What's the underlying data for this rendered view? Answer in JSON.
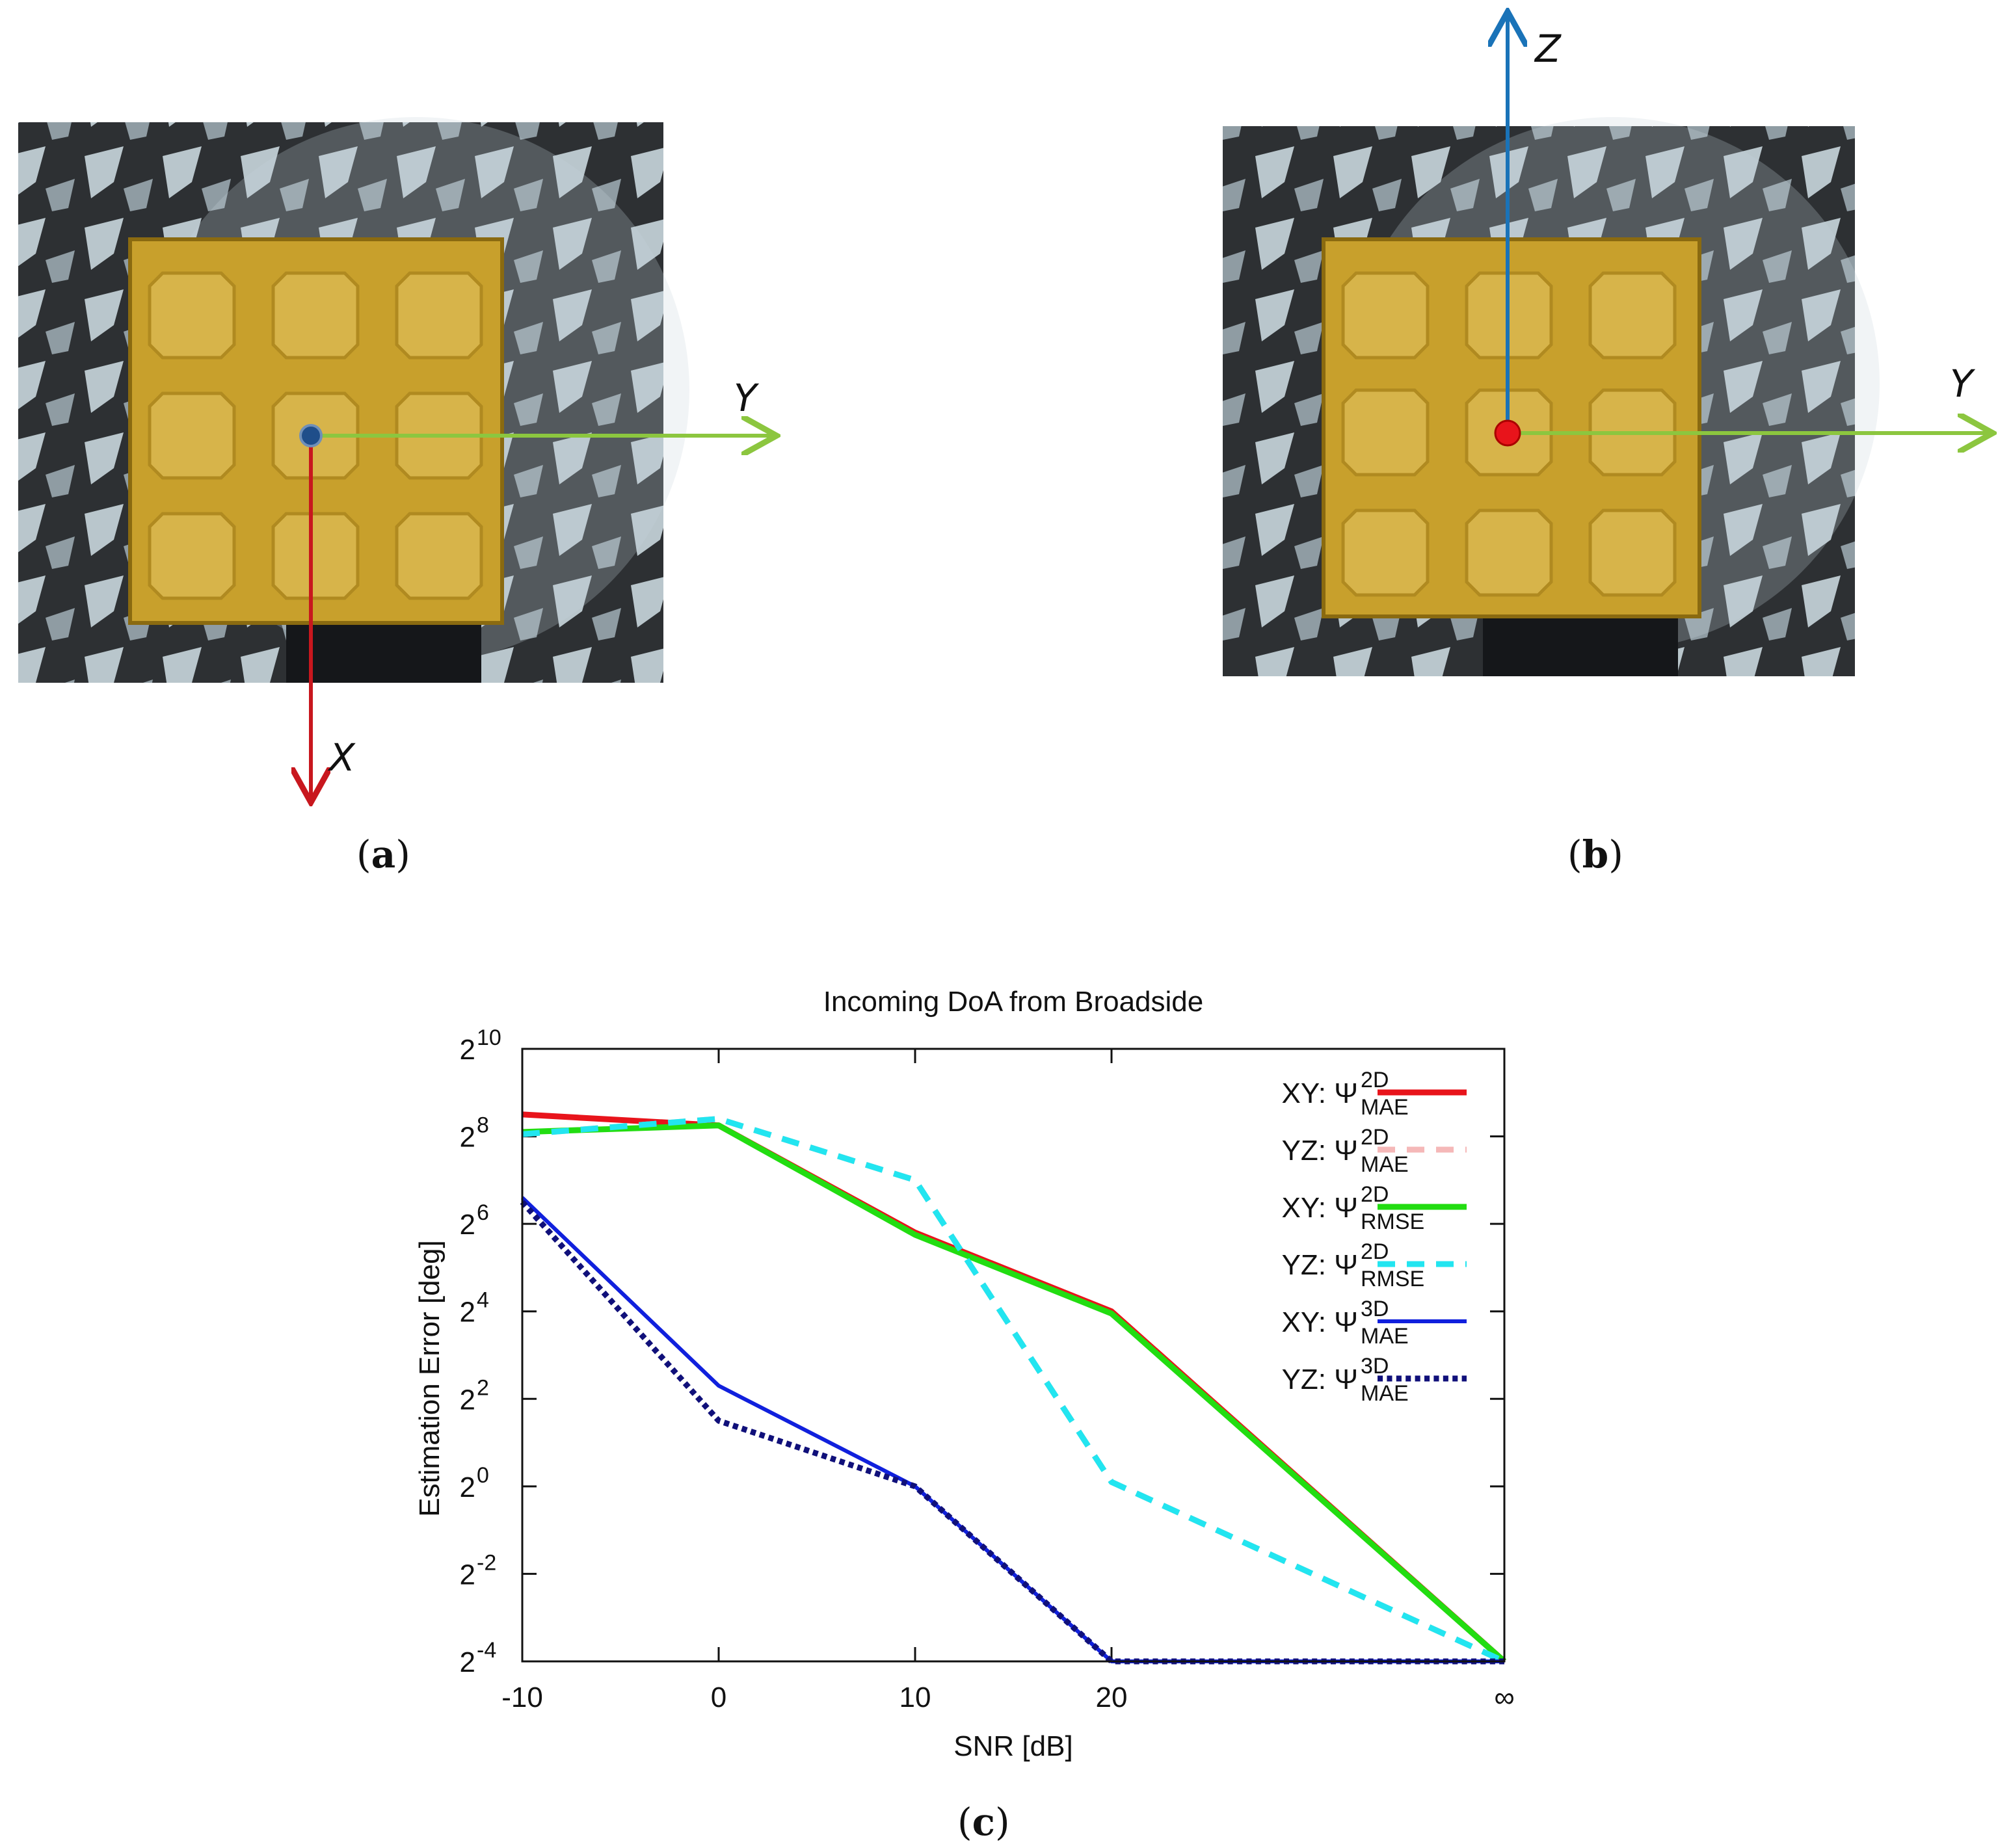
{
  "panels": {
    "a": {
      "caption_open": "(",
      "caption_letter": "a",
      "caption_close": ")",
      "axis_right_label": "Y",
      "axis_down_label": "X",
      "axis_right_color": "#8cc63f",
      "axis_down_color": "#c8171e",
      "origin_color": "#1f4e8a"
    },
    "b": {
      "caption_open": "(",
      "caption_letter": "b",
      "caption_close": ")",
      "axis_right_label": "Y",
      "axis_up_label": "Z",
      "axis_right_color": "#8cc63f",
      "axis_up_color": "#1a73b8",
      "origin_color": "#e8141b"
    },
    "c": {
      "caption_open": "(",
      "caption_letter": "c",
      "caption_close": ")"
    }
  },
  "chart_data": {
    "type": "line",
    "title": "Incoming DoA from Broadside",
    "xlabel": "SNR [dB]",
    "ylabel": "Estimation Error [deg]",
    "y_scale": "log2",
    "y_ticks": [
      {
        "base": "2",
        "exp": "10",
        "value": 10
      },
      {
        "base": "2",
        "exp": "8",
        "value": 8
      },
      {
        "base": "2",
        "exp": "6",
        "value": 6
      },
      {
        "base": "2",
        "exp": "4",
        "value": 4
      },
      {
        "base": "2",
        "exp": "2",
        "value": 2
      },
      {
        "base": "2",
        "exp": "0",
        "value": 0
      },
      {
        "base": "2",
        "exp": "-2",
        "value": -2
      },
      {
        "base": "2",
        "exp": "-4",
        "value": -4
      }
    ],
    "ylim_log2": [
      -4,
      10
    ],
    "categories": [
      "-10",
      "0",
      "10",
      "20",
      "∞"
    ],
    "x_positions": [
      -10,
      0,
      10,
      20,
      40
    ],
    "xlim": [
      -10,
      40
    ],
    "series": [
      {
        "name_prefix": "XY: Ψ",
        "sup": "2D",
        "sub": "MAE",
        "color": "#e8141b",
        "dash": "solid",
        "width": 9,
        "log2_values": [
          8.5,
          8.25,
          5.8,
          4.0,
          -4.0
        ]
      },
      {
        "name_prefix": "YZ: Ψ",
        "sup": "2D",
        "sub": "MAE",
        "color": "#f5b8b8",
        "dash": "dashed",
        "width": 9,
        "log2_values": [
          8.05,
          8.4,
          7.0,
          0.1,
          -4.0
        ]
      },
      {
        "name_prefix": "XY: Ψ",
        "sup": "2D",
        "sub": "RMSE",
        "color": "#22dd11",
        "dash": "solid",
        "width": 9,
        "log2_values": [
          8.1,
          8.25,
          5.75,
          3.95,
          -4.0
        ]
      },
      {
        "name_prefix": "YZ: Ψ",
        "sup": "2D",
        "sub": "RMSE",
        "color": "#22e5f0",
        "dash": "dashed",
        "width": 9,
        "log2_values": [
          8.05,
          8.4,
          7.0,
          0.1,
          -4.0
        ]
      },
      {
        "name_prefix": "XY: Ψ",
        "sup": "3D",
        "sub": "MAE",
        "color": "#1020dd",
        "dash": "solid",
        "width": 6,
        "log2_values": [
          6.6,
          2.3,
          0.0,
          -4.0,
          -4.0
        ]
      },
      {
        "name_prefix": "YZ: Ψ",
        "sup": "3D",
        "sub": "MAE",
        "color": "#10107a",
        "dash": "dotted",
        "width": 9,
        "log2_values": [
          6.5,
          1.5,
          0.0,
          -4.0,
          -4.0
        ]
      }
    ],
    "legend_position": "top-right",
    "grid": false
  }
}
